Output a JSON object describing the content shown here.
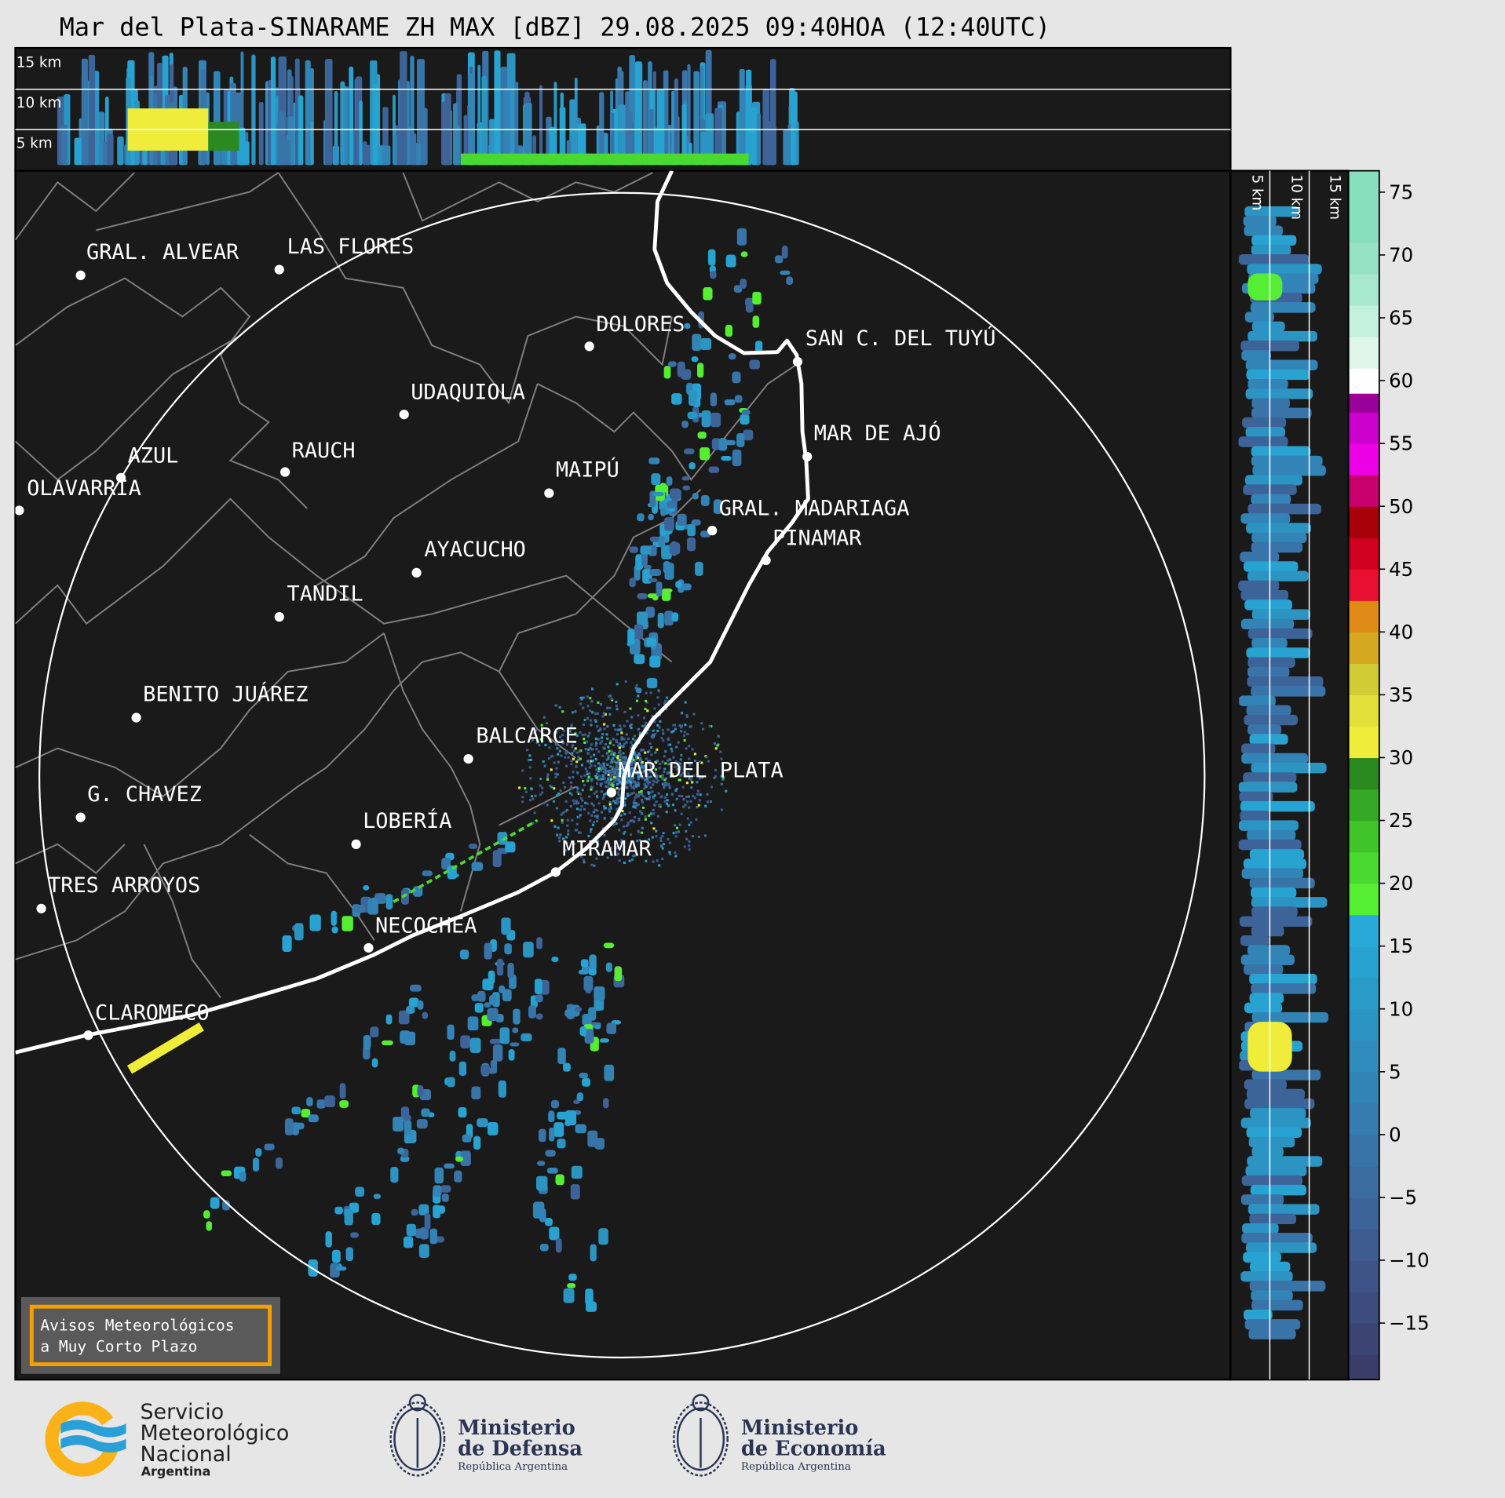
{
  "title": "Mar del Plata-SINARAME ZH MAX [dBZ] 29.08.2025 09:40HOA (12:40UTC)",
  "top_panel": {
    "height_labels": [
      "15 km",
      "10 km",
      "5 km"
    ]
  },
  "side_panel": {
    "height_labels": [
      "5 km",
      "10 km",
      "15 km"
    ]
  },
  "colorbar": {
    "unit": "dBZ",
    "range": [
      -19.5,
      76.7
    ],
    "ticks": [
      "75",
      "70",
      "65",
      "60",
      "55",
      "50",
      "45",
      "40",
      "35",
      "30",
      "25",
      "20",
      "15",
      "10",
      "5",
      "0",
      "−5",
      "−10",
      "−15"
    ],
    "tick_values": [
      75,
      70,
      65,
      60,
      55,
      50,
      45,
      40,
      35,
      30,
      25,
      20,
      15,
      10,
      5,
      0,
      -5,
      -10,
      -15
    ],
    "colors": {
      "blue_low": "#3a3d6a",
      "blue_high": "#28aad8",
      "green": "#4ee630",
      "yellow": "#f0ec3a",
      "orange": "#e08a18",
      "red": "#d00020",
      "magenta": "#cc00cc",
      "white": "#ffffff",
      "mint": "#88dfbe"
    }
  },
  "cities": [
    "GRAL. ALVEAR",
    "LAS FLORES",
    "DOLORES",
    "SAN C. DEL TUYÚ",
    "UDAQUIOLA",
    "MAR DE AJÓ",
    "AZUL",
    "RAUCH",
    "OLAVARRÍA",
    "MAIPÚ",
    "GRAL. MADARIAGA",
    "PINAMAR",
    "AYACUCHO",
    "TANDIL",
    "BENITO JUÁREZ",
    "BALCARCE",
    "MAR DEL PLATA",
    "G. CHAVEZ",
    "LOBERÍA",
    "MIRAMAR",
    "TRES ARROYOS",
    "NECOCHEA",
    "CLAROMECO"
  ],
  "warning_box": {
    "line1": "Avisos Meteorológicos",
    "line2": "a Muy Corto Plazo"
  },
  "logos": {
    "smn": {
      "line1": "Servicio",
      "line2": "Meteorológico",
      "line3": "Nacional",
      "line4": "Argentina"
    },
    "defensa": {
      "line1": "Ministerio",
      "line2": "de Defensa",
      "line3": "República Argentina"
    },
    "economia": {
      "line1": "Ministerio",
      "line2": "de Economía",
      "line3": "República Argentina"
    }
  },
  "colors": {
    "background": "#e6e6e6",
    "map_background": "#1a1a1a",
    "coastline": "#ffffff",
    "borders": "#808080",
    "warning_border": "#f5a000",
    "warning_fill": "#5a5a5a",
    "ministry_text": "#2b3454",
    "smn_orange": "#fbb216",
    "smn_blue": "#2a9fd8"
  }
}
